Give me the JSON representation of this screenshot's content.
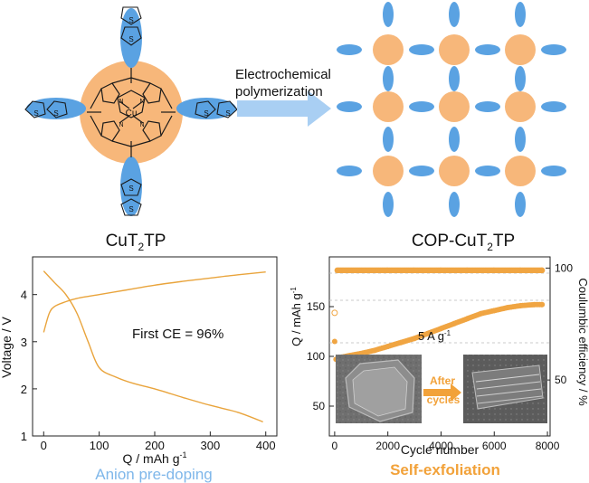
{
  "molecule": {
    "name_main": "CuT",
    "name_sub": "2",
    "name_tail": "TP",
    "metal": "Cu",
    "atom_N": "N",
    "atom_S": "S"
  },
  "arrow": {
    "line1": "Electrochemical",
    "line2": "polymerization"
  },
  "polymer": {
    "name_main": "COP-CuT",
    "name_sub": "2",
    "name_tail": "TP"
  },
  "chart_left": {
    "ylabel": "Voltage / V",
    "xlabel_main": "Q / mAh g",
    "xlabel_sup": "-1",
    "annotation": "First CE = 96%",
    "caption": "Anion pre-doping",
    "xticks": [
      0,
      100,
      200,
      300,
      400
    ],
    "yticks": [
      1,
      2,
      3,
      4
    ],
    "curve_color": "#e9a43c"
  },
  "chart_right": {
    "ylabel_left_main": "Q / mAh g",
    "ylabel_left_sup": "-1",
    "ylabel_right": "Coulumbic efficiency / %",
    "xlabel": "Cycle number",
    "rate_main": "5 A g",
    "rate_sup": "-1",
    "caption": "Self-exfoliation",
    "inset_label_line1": "After",
    "inset_label_line2": "cycles",
    "xticks": [
      0,
      2000,
      4000,
      6000,
      8000
    ],
    "yticks_left": [
      50,
      100,
      150
    ],
    "yticks_right": [
      50,
      100
    ],
    "marker_color": "#f0a542"
  },
  "colors": {
    "orange_core": "#f7b77a",
    "blue_lobe": "#5aa2e2",
    "arrow_blue": "#a9cff3",
    "caption_blue": "#7fb7ea",
    "caption_orange": "#f2a23a"
  },
  "chart_data": [
    {
      "type": "line",
      "title": "",
      "xlabel": "Q / mAh g-1",
      "ylabel": "Voltage / V",
      "xlim": [
        -20,
        420
      ],
      "ylim": [
        1,
        4.8
      ],
      "series": [
        {
          "name": "charge",
          "x": [
            0,
            10,
            20,
            40,
            60,
            100,
            150,
            200,
            250,
            300,
            350,
            400
          ],
          "y": [
            3.2,
            3.6,
            3.75,
            3.85,
            3.92,
            4.0,
            4.1,
            4.2,
            4.28,
            4.35,
            4.42,
            4.48
          ]
        },
        {
          "name": "discharge",
          "x": [
            0,
            20,
            40,
            60,
            80,
            100,
            130,
            160,
            200,
            250,
            300,
            350,
            395
          ],
          "y": [
            4.5,
            4.25,
            4.0,
            3.6,
            3.0,
            2.45,
            2.25,
            2.12,
            2.0,
            1.82,
            1.65,
            1.5,
            1.3
          ]
        }
      ]
    },
    {
      "type": "scatter",
      "title": "",
      "xlabel": "Cycle number",
      "ylabel": "Q / mAh g-1",
      "xlim": [
        -200,
        8100
      ],
      "ylim": [
        20,
        200
      ],
      "series": [
        {
          "name": "capacity",
          "x": [
            0,
            50,
            200,
            600,
            1000,
            1500,
            2000,
            2500,
            3000,
            3500,
            4000,
            4500,
            5000,
            5500,
            6000,
            6500,
            7000,
            7500,
            7800
          ],
          "y": [
            115,
            97,
            99,
            101,
            103,
            106,
            110,
            114,
            118,
            123,
            128,
            133,
            138,
            143,
            146,
            149,
            151,
            152,
            152
          ]
        },
        {
          "name": "coulombic efficiency (%)",
          "x": [
            0,
            100,
            1000,
            2000,
            3000,
            4000,
            5000,
            6000,
            7000,
            7800
          ],
          "y": [
            80,
            99,
            99,
            99,
            99,
            99,
            99,
            99,
            99,
            99
          ]
        }
      ],
      "ylim_right": [
        25,
        105
      ]
    }
  ]
}
